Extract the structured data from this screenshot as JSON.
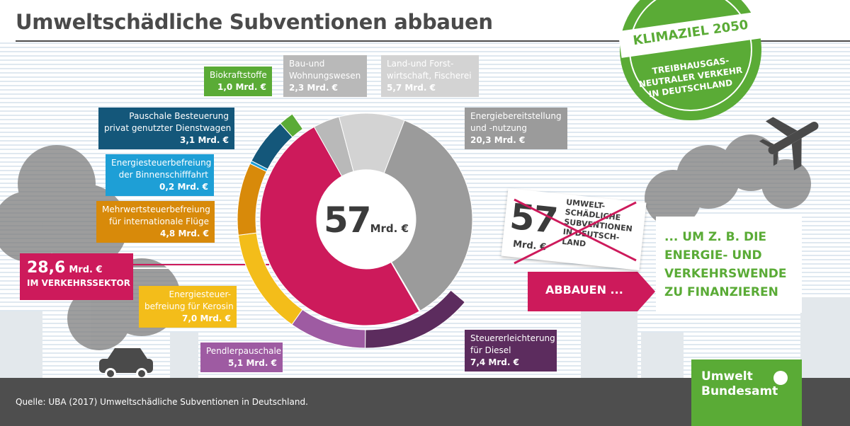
{
  "title": "Umweltschädliche Subventionen abbauen",
  "stamp": {
    "line1": "KLIMAZIEL 2050",
    "line2": "TREIBHAUSGAS-",
    "line3": "NEUTRALER VERKEHR",
    "line4": "IN DEUTSCHLAND"
  },
  "center": {
    "value": "57",
    "unit": "Mrd. €"
  },
  "verkehr": {
    "value": "28,6",
    "unit": "Mrd. €",
    "label": "IM VERKEHRSSEKTOR"
  },
  "labels": {
    "biokraft": {
      "text": "Biokraftstoffe",
      "value": "1,0 Mrd. €"
    },
    "bau": {
      "text1": "Bau-und",
      "text2": "Wohnungswesen",
      "value": "2,3 Mrd. €"
    },
    "land": {
      "text1": "Land-und Forst-",
      "text2": "wirtschaft, Fischerei",
      "value": "5,7 Mrd. €"
    },
    "energie": {
      "text1": "Energiebereitstellung",
      "text2": "und -nutzung",
      "value": "20,3 Mrd. €"
    },
    "dienstwagen": {
      "text1": "Pauschale Besteuerung",
      "text2": "privat genutzter Dienstwagen",
      "value": "3,1 Mrd. €"
    },
    "binnen": {
      "text1": "Energiesteuerbefreiung",
      "text2": "der Binnenschifffahrt",
      "value": "0,2 Mrd. €"
    },
    "mwst": {
      "text1": "Mehrwertsteuerbefreiung",
      "text2": "für internationale Flüge",
      "value": "4,8 Mrd. €"
    },
    "kerosin": {
      "text1": "Energiesteuer-",
      "text2": "befreiung für Kerosin",
      "value": "7,0 Mrd. €"
    },
    "pendler": {
      "text": "Pendlerpauschale",
      "value": "5,1 Mrd. €"
    },
    "diesel": {
      "text1": "Steuererleichterung",
      "text2": "für Diesel",
      "value": "7,4 Mrd. €"
    }
  },
  "tag": {
    "value": "57",
    "unit": "Mrd. €",
    "desc": [
      "UMWELT-",
      "SCHÄDLICHE",
      "SUBVENTIONEN",
      "IN DEUTSCH-",
      "LAND"
    ]
  },
  "abbauen": "ABBAUEN ...",
  "finance": [
    "... UM Z. B. DIE",
    "ENERGIE- UND",
    "VERKEHRSWENDE",
    "ZU FINANZIEREN"
  ],
  "source": "Quelle: UBA (2017) Umweltschädliche Subventionen in Deutschland.",
  "logo": {
    "line1": "Umwelt",
    "line2": "Bundesamt"
  },
  "colors": {
    "green": "#5aab36",
    "crimson": "#cd1a5b",
    "grey_energy": "#9b9b9b",
    "grey_land": "#d3d3d3",
    "grey_bau": "#b9b9b9",
    "navy": "#14577a",
    "cyan": "#1e9fd6",
    "orange": "#d88a0a",
    "yellow": "#f3bd1a",
    "purple": "#9e5ba2",
    "dark_purple": "#5c2c5e"
  },
  "chart_data": {
    "type": "pie",
    "subtype": "donut",
    "total": 57,
    "unit": "Mrd. €",
    "inner_series": [
      {
        "name": "Verkehrssektor",
        "value": 28.6,
        "color": "#cd1a5b"
      },
      {
        "name": "Bau-und Wohnungswesen",
        "value": 2.3,
        "color": "#b9b9b9"
      },
      {
        "name": "Land-und Forstwirtschaft, Fischerei",
        "value": 5.7,
        "color": "#d3d3d3"
      },
      {
        "name": "Energiebereitstellung und -nutzung",
        "value": 20.3,
        "color": "#9b9b9b"
      }
    ],
    "outer_series": [
      {
        "name": "Steuererleichterung für Diesel",
        "value": 7.4,
        "color": "#5c2c5e"
      },
      {
        "name": "Pendlerpauschale",
        "value": 5.1,
        "color": "#9e5ba2"
      },
      {
        "name": "Energiesteuerbefreiung für Kerosin",
        "value": 7.0,
        "color": "#f3bd1a"
      },
      {
        "name": "Mehrwertsteuerbefreiung für internationale Flüge",
        "value": 4.8,
        "color": "#d88a0a"
      },
      {
        "name": "Energiesteuerbefreiung der Binnenschifffahrt",
        "value": 0.2,
        "color": "#1e9fd6"
      },
      {
        "name": "Pauschale Besteuerung privat genutzter Dienstwagen",
        "value": 3.1,
        "color": "#14577a"
      },
      {
        "name": "Biokraftstoffe",
        "value": 1.0,
        "color": "#5aab36"
      }
    ]
  }
}
